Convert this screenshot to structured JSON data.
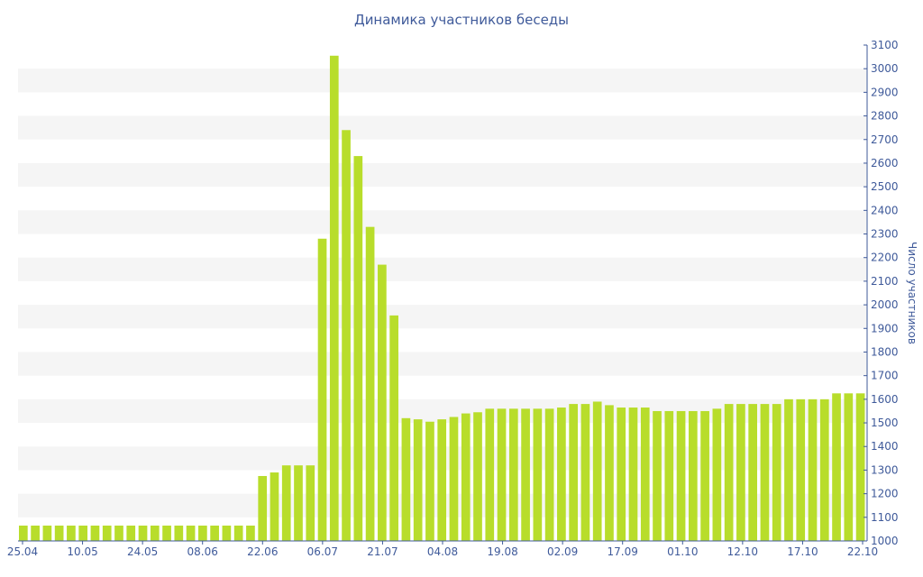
{
  "chart_data": {
    "type": "bar",
    "title": "Динамика участников беседы",
    "xlabel": "",
    "ylabel": "Число участников",
    "ylim": [
      1000,
      3100
    ],
    "yticks": [
      1000,
      1100,
      1200,
      1300,
      1400,
      1500,
      1600,
      1700,
      1800,
      1900,
      2000,
      2100,
      2200,
      2300,
      2400,
      2500,
      2600,
      2700,
      2800,
      2900,
      3000,
      3100
    ],
    "xtick_labels": [
      "25.04",
      "10.05",
      "24.05",
      "08.06",
      "22.06",
      "06.07",
      "21.07",
      "04.08",
      "19.08",
      "02.09",
      "17.09",
      "01.10",
      "12.10",
      "17.10",
      "22.10"
    ],
    "y_axis_position": "right",
    "grid": "alternating horizontal bands",
    "legend": "none",
    "bar_color": "#b8dd2b",
    "values": [
      1065,
      1065,
      1065,
      1065,
      1065,
      1065,
      1065,
      1065,
      1065,
      1065,
      1065,
      1065,
      1065,
      1065,
      1065,
      1065,
      1065,
      1065,
      1065,
      1065,
      1275,
      1290,
      1320,
      1320,
      1320,
      2280,
      3055,
      2740,
      2630,
      2330,
      2170,
      1955,
      1520,
      1515,
      1505,
      1515,
      1525,
      1540,
      1545,
      1560,
      1560,
      1560,
      1560,
      1560,
      1560,
      1565,
      1580,
      1580,
      1590,
      1575,
      1565,
      1565,
      1565,
      1550,
      1550,
      1550,
      1550,
      1550,
      1560,
      1580,
      1580,
      1580,
      1580,
      1580,
      1600,
      1600,
      1600,
      1600,
      1625,
      1625,
      1625
    ]
  }
}
